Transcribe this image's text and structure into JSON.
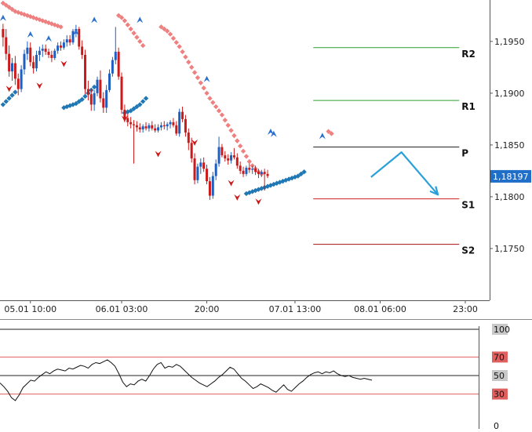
{
  "chart_data": [
    {
      "type": "candlestick",
      "name": "price-chart",
      "price_axis": {
        "ticks": [
          "1,1950",
          "1,1900",
          "1,1850",
          "1,1800",
          "1,1750"
        ],
        "tick_values": [
          1.195,
          1.19,
          1.185,
          1.18,
          1.175
        ],
        "range": [
          1.17,
          1.199
        ],
        "current_price_label": "1,18197",
        "current_price": 1.18197
      },
      "time_axis": {
        "ticks": [
          "05.01 10:00",
          "06.01 03:00",
          "20:00",
          "07.01 13:00",
          "08.01 06:00",
          "23:00"
        ],
        "tick_index": [
          9,
          39,
          67,
          96,
          124,
          152
        ],
        "range": [
          -1,
          160
        ]
      },
      "pivots": [
        {
          "label": "R2",
          "value": 1.1944,
          "color": "#2ca02c"
        },
        {
          "label": "R1",
          "value": 1.1893,
          "color": "#2ca02c"
        },
        {
          "label": "P",
          "value": 1.1848,
          "color": "#222222"
        },
        {
          "label": "S1",
          "value": 1.1798,
          "color": "#cc2222"
        },
        {
          "label": "S2",
          "value": 1.1754,
          "color": "#aa1111"
        }
      ],
      "pivot_start_index": 102,
      "forecast_path": [
        {
          "i": 121,
          "v": 1.1819
        },
        {
          "i": 131,
          "v": 1.1843
        },
        {
          "i": 143,
          "v": 1.1802
        }
      ],
      "candles": [
        [
          1.1962,
          1.1967,
          1.1945,
          1.1954
        ],
        [
          1.1954,
          1.1962,
          1.1932,
          1.1938
        ],
        [
          1.1938,
          1.1946,
          1.1916,
          1.1921
        ],
        [
          1.1921,
          1.1934,
          1.1912,
          1.1929
        ],
        [
          1.1929,
          1.1936,
          1.1908,
          1.1914
        ],
        [
          1.1914,
          1.1919,
          1.1898,
          1.1904
        ],
        [
          1.1904,
          1.1927,
          1.1901,
          1.1923
        ],
        [
          1.1923,
          1.1942,
          1.1918,
          1.1938
        ],
        [
          1.1938,
          1.195,
          1.1932,
          1.1944
        ],
        [
          1.1944,
          1.1949,
          1.1926,
          1.193
        ],
        [
          1.193,
          1.1936,
          1.1919,
          1.1924
        ],
        [
          1.1924,
          1.1941,
          1.1921,
          1.1937
        ],
        [
          1.1937,
          1.1945,
          1.1931,
          1.1941
        ],
        [
          1.1941,
          1.1947,
          1.1935,
          1.1943
        ],
        [
          1.1943,
          1.1947,
          1.1937,
          1.194
        ],
        [
          1.194,
          1.1943,
          1.1934,
          1.1937
        ],
        [
          1.1937,
          1.1941,
          1.193,
          1.1934
        ],
        [
          1.1934,
          1.1943,
          1.1932,
          1.1941
        ],
        [
          1.1941,
          1.1949,
          1.1938,
          1.1946
        ],
        [
          1.1946,
          1.195,
          1.1941,
          1.1944
        ],
        [
          1.1944,
          1.1952,
          1.1942,
          1.1949
        ],
        [
          1.1949,
          1.1956,
          1.1945,
          1.1952
        ],
        [
          1.1952,
          1.1956,
          1.1946,
          1.1949
        ],
        [
          1.1949,
          1.1962,
          1.1947,
          1.196
        ],
        [
          1.196,
          1.1966,
          1.1954,
          1.1962
        ],
        [
          1.1962,
          1.1964,
          1.1942,
          1.1945
        ],
        [
          1.1945,
          1.1951,
          1.1933,
          1.1937
        ],
        [
          1.1937,
          1.1942,
          1.1899,
          1.1904
        ],
        [
          1.1904,
          1.1912,
          1.1893,
          1.1899
        ],
        [
          1.1899,
          1.1904,
          1.1883,
          1.1889
        ],
        [
          1.1889,
          1.1903,
          1.1883,
          1.19
        ],
        [
          1.19,
          1.1916,
          1.1897,
          1.1913
        ],
        [
          1.1913,
          1.1922,
          1.1891,
          1.1895
        ],
        [
          1.1895,
          1.1901,
          1.1881,
          1.1886
        ],
        [
          1.1886,
          1.1908,
          1.1881,
          1.1903
        ],
        [
          1.1903,
          1.1923,
          1.1901,
          1.1919
        ],
        [
          1.1919,
          1.1935,
          1.1916,
          1.1932
        ],
        [
          1.1932,
          1.1964,
          1.1928,
          1.194
        ],
        [
          1.194,
          1.1944,
          1.1913,
          1.1916
        ],
        [
          1.1916,
          1.192,
          1.188,
          1.1884
        ],
        [
          1.1884,
          1.1889,
          1.1872,
          1.1876
        ],
        [
          1.1876,
          1.188,
          1.1868,
          1.1872
        ],
        [
          1.1872,
          1.1877,
          1.1866,
          1.187
        ],
        [
          1.187,
          1.1874,
          1.1832,
          1.1869
        ],
        [
          1.1869,
          1.1873,
          1.1863,
          1.1867
        ],
        [
          1.1867,
          1.1871,
          1.1862,
          1.1865
        ],
        [
          1.1865,
          1.187,
          1.1862,
          1.1868
        ],
        [
          1.1868,
          1.1872,
          1.1864,
          1.1866
        ],
        [
          1.1866,
          1.1871,
          1.1863,
          1.1869
        ],
        [
          1.1869,
          1.1873,
          1.1864,
          1.1866
        ],
        [
          1.1866,
          1.187,
          1.1862,
          1.1864
        ],
        [
          1.1864,
          1.187,
          1.1862,
          1.1867
        ],
        [
          1.1867,
          1.1872,
          1.1864,
          1.1869
        ],
        [
          1.1869,
          1.1873,
          1.1865,
          1.1868
        ],
        [
          1.1868,
          1.1872,
          1.1864,
          1.187
        ],
        [
          1.187,
          1.1874,
          1.1866,
          1.1872
        ],
        [
          1.1872,
          1.1876,
          1.1867,
          1.1869
        ],
        [
          1.1869,
          1.1873,
          1.1859,
          1.1861
        ],
        [
          1.1861,
          1.1885,
          1.1858,
          1.1882
        ],
        [
          1.1882,
          1.1887,
          1.1872,
          1.1875
        ],
        [
          1.1875,
          1.1879,
          1.1858,
          1.1862
        ],
        [
          1.1862,
          1.1866,
          1.1845,
          1.1852
        ],
        [
          1.1852,
          1.1857,
          1.1833,
          1.1837
        ],
        [
          1.1837,
          1.1842,
          1.1812,
          1.1816
        ],
        [
          1.1816,
          1.1832,
          1.1813,
          1.1829
        ],
        [
          1.1829,
          1.1837,
          1.1822,
          1.1833
        ],
        [
          1.1833,
          1.1838,
          1.1824,
          1.1827
        ],
        [
          1.1827,
          1.1831,
          1.1812,
          1.1815
        ],
        [
          1.1815,
          1.1819,
          1.1797,
          1.1801
        ],
        [
          1.1801,
          1.1824,
          1.1798,
          1.182
        ],
        [
          1.182,
          1.1836,
          1.1816,
          1.1832
        ],
        [
          1.1832,
          1.1858,
          1.1829,
          1.1848
        ],
        [
          1.1848,
          1.1851,
          1.1838,
          1.184
        ],
        [
          1.184,
          1.1844,
          1.1834,
          1.1837
        ],
        [
          1.1837,
          1.1841,
          1.1831,
          1.1835
        ],
        [
          1.1835,
          1.1843,
          1.1832,
          1.184
        ],
        [
          1.184,
          1.1847,
          1.1836,
          1.1838
        ],
        [
          1.1838,
          1.1842,
          1.1827,
          1.183
        ],
        [
          1.183,
          1.1834,
          1.1822,
          1.1825
        ],
        [
          1.1825,
          1.1829,
          1.1819,
          1.1822
        ],
        [
          1.1822,
          1.183,
          1.182,
          1.1828
        ],
        [
          1.1828,
          1.1832,
          1.1823,
          1.1826
        ],
        [
          1.1826,
          1.183,
          1.1822,
          1.1827
        ],
        [
          1.1827,
          1.183,
          1.1821,
          1.1824
        ],
        [
          1.1824,
          1.1827,
          1.1818,
          1.1822
        ],
        [
          1.1822,
          1.1826,
          1.1819,
          1.1824
        ],
        [
          1.1824,
          1.1827,
          1.1806,
          1.1822
        ],
        [
          1.1822,
          1.1826,
          1.1818,
          1.182
        ]
      ],
      "parabolic_sar": {
        "upper": [
          [
            0,
            1.1987
          ],
          [
            1,
            1.1985
          ],
          [
            2,
            1.1983
          ],
          [
            3,
            1.1981
          ],
          [
            4,
            1.1979
          ],
          [
            5,
            1.1978
          ],
          [
            6,
            1.1977
          ],
          [
            7,
            1.1976
          ],
          [
            8,
            1.1975
          ],
          [
            9,
            1.1974
          ],
          [
            10,
            1.1973
          ],
          [
            11,
            1.1972
          ],
          [
            12,
            1.1971
          ],
          [
            13,
            1.197
          ],
          [
            14,
            1.1969
          ],
          [
            15,
            1.1968
          ],
          [
            16,
            1.1967
          ],
          [
            17,
            1.1966
          ],
          [
            18,
            1.1965
          ],
          [
            19,
            1.1964
          ],
          [
            38,
            1.1975
          ],
          [
            39,
            1.1973
          ],
          [
            40,
            1.197
          ],
          [
            41,
            1.1966
          ],
          [
            42,
            1.1962
          ],
          [
            43,
            1.1958
          ],
          [
            44,
            1.1954
          ],
          [
            45,
            1.195
          ],
          [
            46,
            1.1946
          ],
          [
            52,
            1.1964
          ],
          [
            53,
            1.1962
          ],
          [
            54,
            1.196
          ],
          [
            55,
            1.1957
          ],
          [
            56,
            1.1953
          ],
          [
            57,
            1.1949
          ],
          [
            58,
            1.1945
          ],
          [
            59,
            1.194
          ],
          [
            60,
            1.1935
          ],
          [
            61,
            1.193
          ],
          [
            62,
            1.1925
          ],
          [
            63,
            1.192
          ],
          [
            64,
            1.1915
          ],
          [
            65,
            1.191
          ],
          [
            66,
            1.1905
          ],
          [
            67,
            1.19
          ],
          [
            68,
            1.1895
          ],
          [
            69,
            1.1891
          ],
          [
            70,
            1.1887
          ],
          [
            71,
            1.1883
          ],
          [
            72,
            1.1879
          ],
          [
            73,
            1.1874
          ],
          [
            74,
            1.1869
          ],
          [
            75,
            1.1864
          ],
          [
            76,
            1.1859
          ],
          [
            77,
            1.1854
          ],
          [
            78,
            1.1849
          ],
          [
            79,
            1.1844
          ],
          [
            80,
            1.1839
          ],
          [
            81,
            1.1834
          ],
          [
            82,
            1.183
          ],
          [
            83,
            1.1827
          ],
          [
            84,
            1.1824
          ],
          [
            85,
            1.1822
          ],
          [
            107,
            1.1863
          ],
          [
            108,
            1.1861
          ]
        ],
        "lower": [
          [
            0,
            1.1889
          ],
          [
            1,
            1.1892
          ],
          [
            2,
            1.1895
          ],
          [
            3,
            1.1898
          ],
          [
            4,
            1.1901
          ],
          [
            20,
            1.1886
          ],
          [
            21,
            1.1887
          ],
          [
            22,
            1.1888
          ],
          [
            23,
            1.1889
          ],
          [
            24,
            1.189
          ],
          [
            25,
            1.1892
          ],
          [
            26,
            1.1894
          ],
          [
            27,
            1.1897
          ],
          [
            28,
            1.19
          ],
          [
            29,
            1.1903
          ],
          [
            30,
            1.1906
          ],
          [
            40,
            1.1881
          ],
          [
            41,
            1.1882
          ],
          [
            42,
            1.1883
          ],
          [
            43,
            1.1885
          ],
          [
            44,
            1.1887
          ],
          [
            45,
            1.1889
          ],
          [
            46,
            1.1892
          ],
          [
            47,
            1.1895
          ],
          [
            80,
            1.1803
          ],
          [
            81,
            1.1804
          ],
          [
            82,
            1.1805
          ],
          [
            83,
            1.1806
          ],
          [
            84,
            1.1807
          ],
          [
            85,
            1.1808
          ],
          [
            86,
            1.1809
          ],
          [
            87,
            1.181
          ],
          [
            88,
            1.1811
          ],
          [
            89,
            1.1812
          ],
          [
            90,
            1.1813
          ],
          [
            91,
            1.1814
          ],
          [
            92,
            1.1815
          ],
          [
            93,
            1.1816
          ],
          [
            94,
            1.1817
          ],
          [
            95,
            1.1818
          ],
          [
            96,
            1.1819
          ],
          [
            97,
            1.182
          ],
          [
            98,
            1.1822
          ],
          [
            99,
            1.1824
          ]
        ]
      },
      "fractals": {
        "up": [
          [
            0,
            1.1972
          ],
          [
            9,
            1.1956
          ],
          [
            15,
            1.1952
          ],
          [
            24,
            1.1958
          ],
          [
            30,
            1.197
          ],
          [
            45,
            1.197
          ],
          [
            67,
            1.1913
          ],
          [
            88,
            1.1862
          ],
          [
            89,
            1.186
          ],
          [
            105,
            1.1858
          ]
        ],
        "down": [
          [
            2,
            1.1905
          ],
          [
            12,
            1.1908
          ],
          [
            20,
            1.1929
          ],
          [
            40,
            1.1876
          ],
          [
            51,
            1.1842
          ],
          [
            63,
            1.1853
          ],
          [
            75,
            1.1814
          ],
          [
            77,
            1.18
          ],
          [
            84,
            1.1796
          ]
        ]
      }
    },
    {
      "type": "line",
      "name": "oscillator",
      "levels": [
        {
          "label": "100",
          "value": 100
        },
        {
          "label": "70",
          "value": 70
        },
        {
          "label": "50",
          "value": 50
        },
        {
          "label": "30",
          "value": 30
        },
        {
          "label": "0",
          "value": 0
        }
      ],
      "range": [
        0,
        100
      ],
      "series": [
        {
          "values": [
            42,
            38,
            33,
            26,
            23,
            29,
            37,
            41,
            45,
            44,
            48,
            51,
            54,
            52,
            55,
            57,
            56,
            55,
            58,
            57,
            59,
            61,
            60,
            58,
            62,
            64,
            63,
            65,
            67,
            64,
            60,
            52,
            43,
            38,
            41,
            40,
            44,
            46,
            44,
            50,
            57,
            62,
            64,
            58,
            60,
            59,
            62,
            60,
            56,
            52,
            48,
            45,
            42,
            40,
            38,
            41,
            44,
            48,
            51,
            55,
            59,
            57,
            52,
            47,
            44,
            40,
            36,
            38,
            41,
            39,
            37,
            34,
            32,
            36,
            40,
            35,
            33,
            37,
            41,
            44,
            48,
            51,
            53,
            54,
            52,
            54,
            53,
            55,
            52,
            50,
            49,
            50,
            48,
            47,
            46,
            47,
            46,
            45
          ]
        }
      ]
    }
  ]
}
